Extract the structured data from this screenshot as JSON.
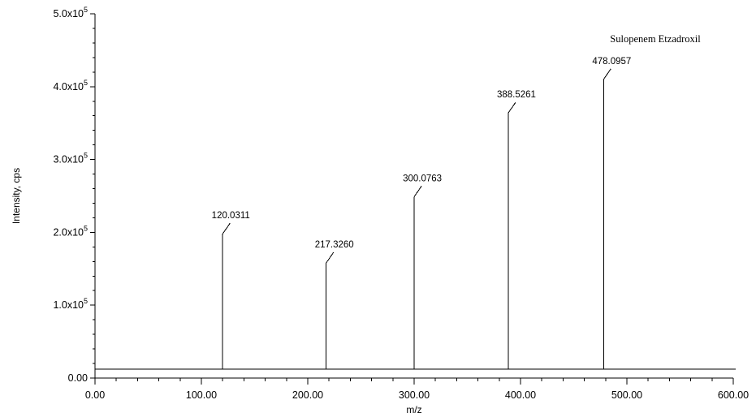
{
  "chart_data": {
    "type": "bar",
    "title": "",
    "annotation": "Sulopenem Etzadroxil",
    "xlabel": "m/z",
    "ylabel": "Intensity, cps",
    "xlim": [
      0,
      600
    ],
    "ylim": [
      0,
      500000
    ],
    "baseline": 12000,
    "grid": false,
    "x_ticks": [
      {
        "value": 0,
        "label": "0.00"
      },
      {
        "value": 100,
        "label": "100.00"
      },
      {
        "value": 200,
        "label": "200.00"
      },
      {
        "value": 300,
        "label": "300.00"
      },
      {
        "value": 400,
        "label": "400.00"
      },
      {
        "value": 500,
        "label": "500.00"
      },
      {
        "value": 600,
        "label": "600.00"
      }
    ],
    "y_ticks": [
      {
        "value": 0,
        "label": "0.00",
        "mantissa": "",
        "exp": ""
      },
      {
        "value": 100000,
        "label": "",
        "mantissa": "1.0x10",
        "exp": "5"
      },
      {
        "value": 200000,
        "label": "",
        "mantissa": "2.0x10",
        "exp": "5"
      },
      {
        "value": 300000,
        "label": "",
        "mantissa": "3.0x10",
        "exp": "5"
      },
      {
        "value": 400000,
        "label": "",
        "mantissa": "4.0x10",
        "exp": "5"
      },
      {
        "value": 500000,
        "label": "",
        "mantissa": "5.0x10",
        "exp": "5"
      }
    ],
    "peaks": [
      {
        "mz": 120.0311,
        "intensity": 198000,
        "label": "120.0311"
      },
      {
        "mz": 217.326,
        "intensity": 158000,
        "label": "217.3260"
      },
      {
        "mz": 300.0763,
        "intensity": 249000,
        "label": "300.0763"
      },
      {
        "mz": 388.5261,
        "intensity": 364000,
        "label": "388.5261"
      },
      {
        "mz": 478.0957,
        "intensity": 410000,
        "label": "478.0957"
      }
    ]
  }
}
